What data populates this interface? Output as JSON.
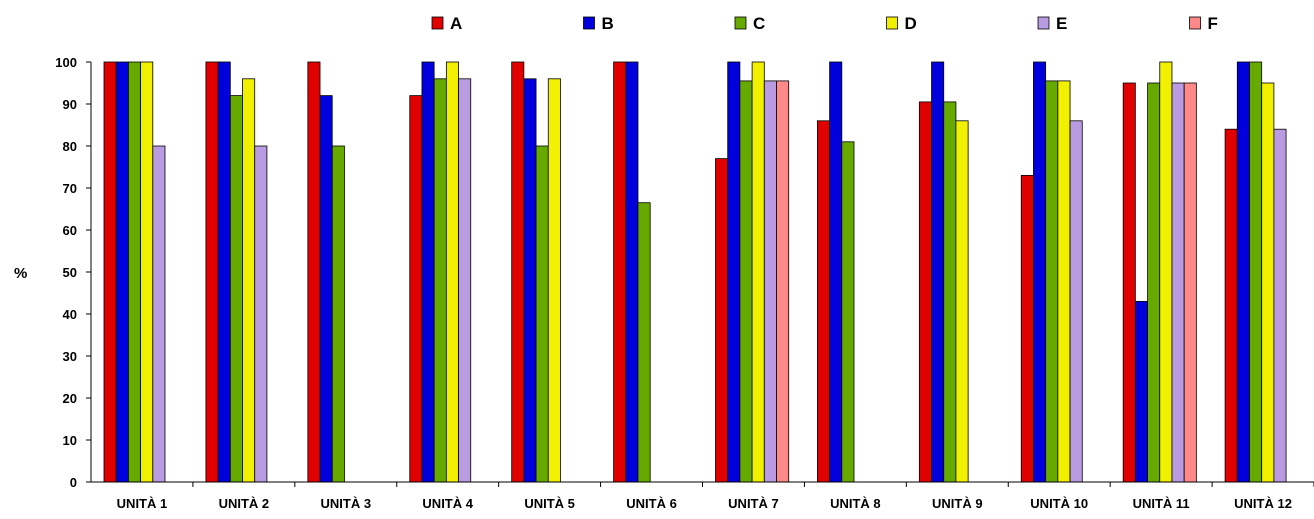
{
  "chart_data": {
    "type": "bar",
    "title": "",
    "xlabel": "",
    "ylabel": "%",
    "ylim": [
      0,
      100
    ],
    "yticks": [
      0,
      10,
      20,
      30,
      40,
      50,
      60,
      70,
      80,
      90,
      100
    ],
    "grid": false,
    "legend_position": "top",
    "categories": [
      "UNITÀ 1",
      "UNITÀ 2",
      "UNITÀ 3",
      "UNITÀ 4",
      "UNITÀ 5",
      "UNITÀ 6",
      "UNITÀ 7",
      "UNITÀ 8",
      "UNITÀ 9",
      "UNITÀ 10",
      "UNITÀ 11",
      "UNITÀ 12"
    ],
    "series": [
      {
        "name": "A",
        "color": "#e00000",
        "values": [
          100,
          100,
          100,
          92,
          100,
          100,
          77,
          86,
          90.5,
          73,
          95,
          84
        ]
      },
      {
        "name": "B",
        "color": "#0000dd",
        "values": [
          100,
          100,
          92,
          100,
          96,
          100,
          100,
          100,
          100,
          100,
          43,
          100
        ]
      },
      {
        "name": "C",
        "color": "#66aa00",
        "values": [
          100,
          92,
          80,
          96,
          80,
          66.5,
          95.5,
          81,
          90.5,
          95.5,
          95,
          100
        ]
      },
      {
        "name": "D",
        "color": "#f0f000",
        "values": [
          100,
          96,
          null,
          100,
          96,
          null,
          100,
          null,
          86,
          95.5,
          100,
          95
        ]
      },
      {
        "name": "E",
        "color": "#b89be0",
        "values": [
          80,
          80,
          null,
          96,
          null,
          null,
          95.5,
          null,
          null,
          86,
          95,
          84
        ]
      },
      {
        "name": "F",
        "color": "#ff8888",
        "values": [
          null,
          null,
          null,
          null,
          null,
          null,
          95.5,
          null,
          null,
          null,
          95,
          null
        ]
      }
    ]
  }
}
